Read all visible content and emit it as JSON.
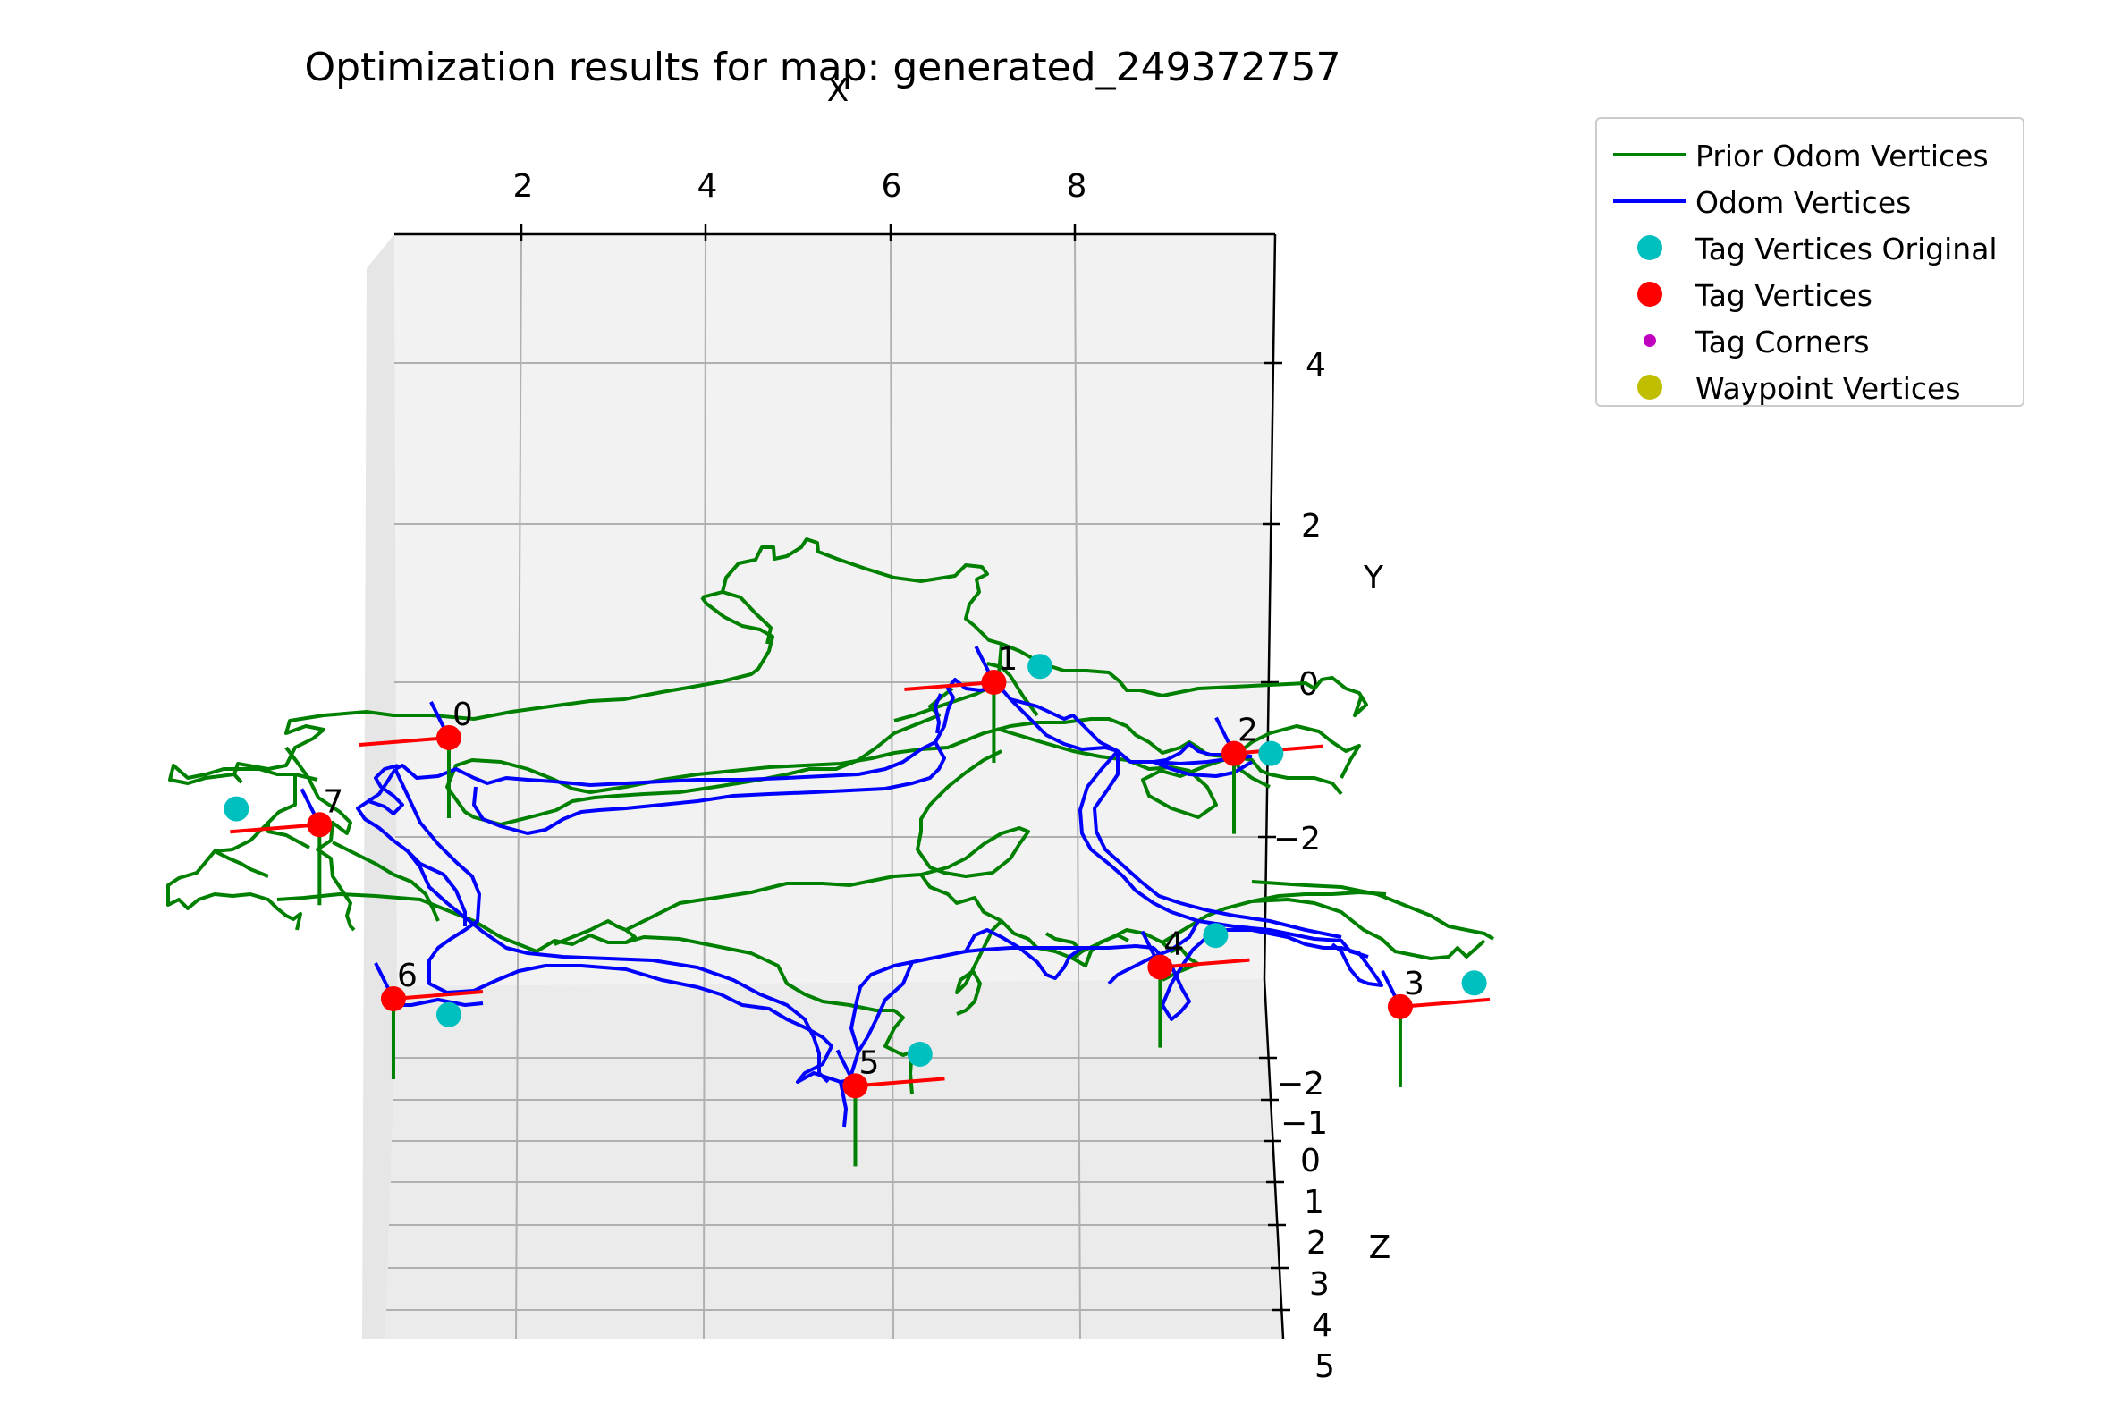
{
  "chart_data": {
    "type": "line",
    "title": "Optimization results for map: generated_249372757",
    "axes": {
      "x": {
        "label": "X",
        "ticks": [
          "2",
          "4",
          "6",
          "8"
        ]
      },
      "y": {
        "label": "Y",
        "ticks": [
          "4",
          "2",
          "0",
          "−2"
        ]
      },
      "z": {
        "label": "Z",
        "ticks": [
          "−2",
          "−1",
          "0",
          "1",
          "2",
          "3",
          "4",
          "5"
        ]
      }
    },
    "grid": true,
    "legend_position": "outside-top-right",
    "legend": [
      {
        "label": "Prior Odom Vertices",
        "kind": "line",
        "color": "#008000"
      },
      {
        "label": "Odom Vertices",
        "kind": "line",
        "color": "#0000ff"
      },
      {
        "label": "Tag Vertices Original",
        "kind": "marker",
        "size": "large",
        "color": "#00bfbf"
      },
      {
        "label": "Tag Vertices",
        "kind": "marker",
        "size": "large",
        "color": "#ff0000"
      },
      {
        "label": "Tag Corners",
        "kind": "marker",
        "size": "small",
        "color": "#bf00bf"
      },
      {
        "label": "Waypoint Vertices",
        "kind": "marker",
        "size": "large",
        "color": "#bfbf00"
      }
    ],
    "tags": [
      {
        "id": "0",
        "x": 1.2,
        "y": -0.7
      },
      {
        "id": "1",
        "x": 7.1,
        "y": 0.0
      },
      {
        "id": "2",
        "x": 9.7,
        "y": -0.9
      },
      {
        "id": "3",
        "x": 11.5,
        "y": -4.1
      },
      {
        "id": "4",
        "x": 8.9,
        "y": -3.6
      },
      {
        "id": "5",
        "x": 5.6,
        "y": -5.1
      },
      {
        "id": "6",
        "x": 0.6,
        "y": -4.0
      },
      {
        "id": "7",
        "x": -0.2,
        "y": -1.8
      }
    ],
    "tags_original": [
      {
        "x": 7.6,
        "y": 0.2
      },
      {
        "x": 10.1,
        "y": -0.9
      },
      {
        "x": -1.1,
        "y": -1.6
      },
      {
        "x": 1.2,
        "y": -4.2
      },
      {
        "x": 6.3,
        "y": -4.7
      },
      {
        "x": 9.5,
        "y": -3.2
      },
      {
        "x": 12.3,
        "y": -3.8
      }
    ]
  }
}
